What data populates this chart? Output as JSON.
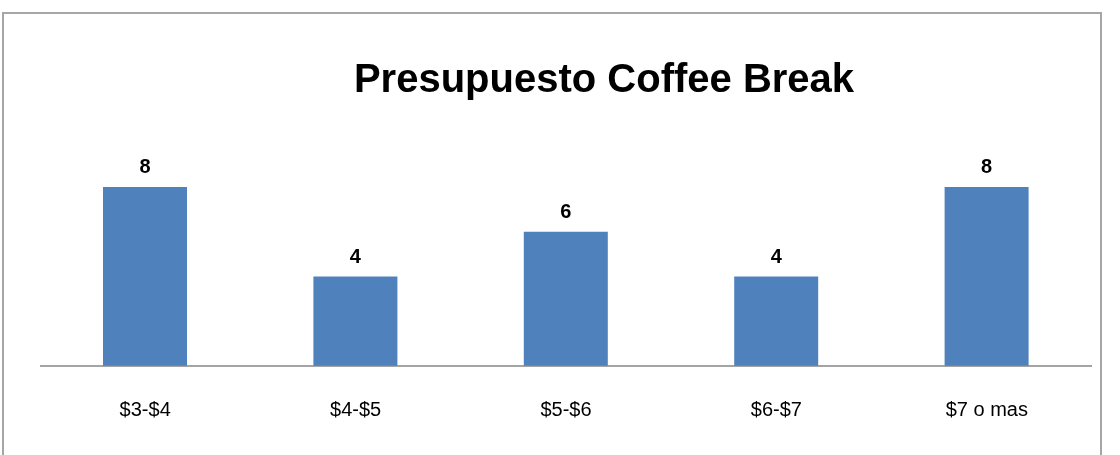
{
  "chart_data": {
    "type": "bar",
    "title": "Presupuesto Coffee Break",
    "categories": [
      "$3-$4",
      "$4-$5",
      "$5-$6",
      "$6-$7",
      "$7 o mas"
    ],
    "values": [
      8,
      4,
      6,
      4,
      8
    ],
    "color": "#4f81bd",
    "data_labels": true
  }
}
